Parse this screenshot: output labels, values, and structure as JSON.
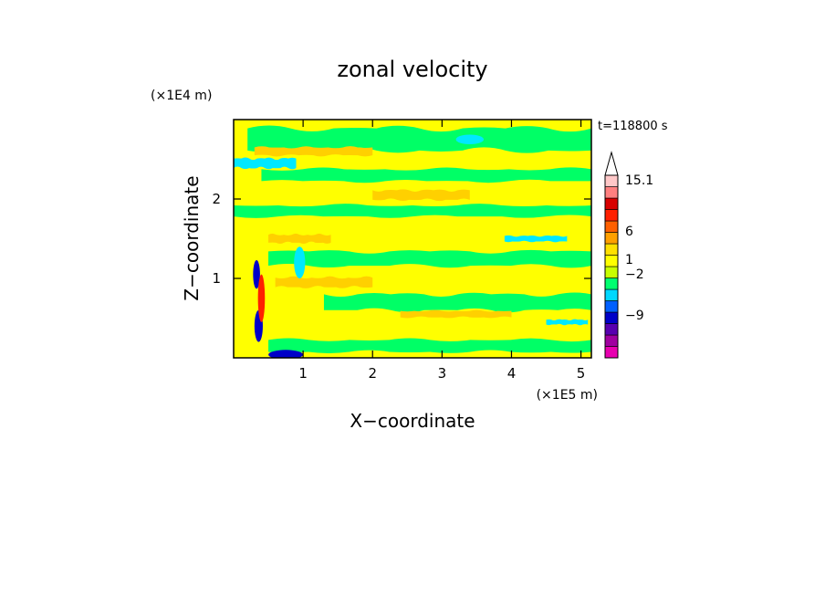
{
  "chart_data": {
    "type": "heatmap",
    "title": "zonal velocity",
    "xlabel": "X−coordinate",
    "ylabel": "Z−coordinate",
    "x_unit_label": "(×1E5 m)",
    "y_unit_label": "(×1E4 m)",
    "time_label": "t=118800 s",
    "xlim": [
      0,
      5.15
    ],
    "ylim": [
      0,
      3.0
    ],
    "x_ticks": [
      1,
      2,
      3,
      4,
      5
    ],
    "y_ticks": [
      1,
      2
    ],
    "x_tick_labels": [
      "1",
      "2",
      "3",
      "4",
      "5"
    ],
    "y_tick_labels": [
      "1",
      "2"
    ],
    "grid": false,
    "colorbar": {
      "position": "right",
      "extend_top": true,
      "labels": [
        {
          "text": "15.1",
          "value": 15.1
        },
        {
          "text": "6",
          "value": 6
        },
        {
          "text": "1",
          "value": 1
        },
        {
          "text": "−2",
          "value": -2
        },
        {
          "text": "−9",
          "value": -9
        }
      ],
      "colors": [
        "#e800b0",
        "#a000a0",
        "#5800b0",
        "#0000c8",
        "#0060ff",
        "#00d8ff",
        "#00ff70",
        "#c8ff00",
        "#ffff00",
        "#ffe000",
        "#ffa000",
        "#ff6000",
        "#ff2000",
        "#d80000",
        "#ff8080",
        "#ffc8c8"
      ]
    },
    "field_colors": {
      "background": "#ffff00",
      "positive_band": "#ffd000",
      "weak_negative": "#00ff66",
      "moderate_negative": "#00e8ff",
      "strong_negative": "#0000c8",
      "strong_positive": "#ff2000"
    },
    "field_bands": [
      {
        "kind": "weak_negative",
        "z": 2.75,
        "x": [
          0.2,
          5.15
        ],
        "thick": 0.28
      },
      {
        "kind": "positive_band",
        "z": 2.6,
        "x": [
          0.3,
          2.0
        ],
        "thick": 0.1
      },
      {
        "kind": "moderate_negative",
        "z": 2.45,
        "x": [
          0.0,
          0.9
        ],
        "thick": 0.12
      },
      {
        "kind": "weak_negative",
        "z": 2.3,
        "x": [
          0.4,
          5.15
        ],
        "thick": 0.15
      },
      {
        "kind": "positive_band",
        "z": 2.05,
        "x": [
          2.0,
          3.4
        ],
        "thick": 0.12
      },
      {
        "kind": "weak_negative",
        "z": 1.85,
        "x": [
          0.0,
          5.15
        ],
        "thick": 0.14
      },
      {
        "kind": "moderate_negative",
        "z": 1.5,
        "x": [
          3.9,
          4.8
        ],
        "thick": 0.07
      },
      {
        "kind": "positive_band",
        "z": 1.5,
        "x": [
          0.5,
          1.4
        ],
        "thick": 0.1
      },
      {
        "kind": "weak_negative",
        "z": 1.25,
        "x": [
          0.5,
          5.15
        ],
        "thick": 0.18
      },
      {
        "kind": "positive_band",
        "z": 0.95,
        "x": [
          0.6,
          2.0
        ],
        "thick": 0.12
      },
      {
        "kind": "weak_negative",
        "z": 0.7,
        "x": [
          1.3,
          5.15
        ],
        "thick": 0.2
      },
      {
        "kind": "positive_band",
        "z": 0.55,
        "x": [
          2.4,
          4.0
        ],
        "thick": 0.08
      },
      {
        "kind": "moderate_negative",
        "z": 0.45,
        "x": [
          4.5,
          5.1
        ],
        "thick": 0.06
      },
      {
        "kind": "weak_negative",
        "z": 0.15,
        "x": [
          0.5,
          5.15
        ],
        "thick": 0.15
      }
    ],
    "field_spots": [
      {
        "kind": "strong_negative",
        "x": 0.33,
        "z": 1.05,
        "rx": 0.05,
        "rz": 0.18
      },
      {
        "kind": "strong_negative",
        "x": 0.36,
        "z": 0.4,
        "rx": 0.06,
        "rz": 0.2
      },
      {
        "kind": "strong_negative",
        "x": 0.75,
        "z": 0.04,
        "rx": 0.25,
        "rz": 0.06
      },
      {
        "kind": "strong_positive",
        "x": 0.4,
        "z": 0.75,
        "rx": 0.05,
        "rz": 0.3
      },
      {
        "kind": "moderate_negative",
        "x": 3.4,
        "z": 2.75,
        "rx": 0.2,
        "rz": 0.06
      },
      {
        "kind": "moderate_negative",
        "x": 0.95,
        "z": 1.2,
        "rx": 0.08,
        "rz": 0.2
      }
    ]
  }
}
